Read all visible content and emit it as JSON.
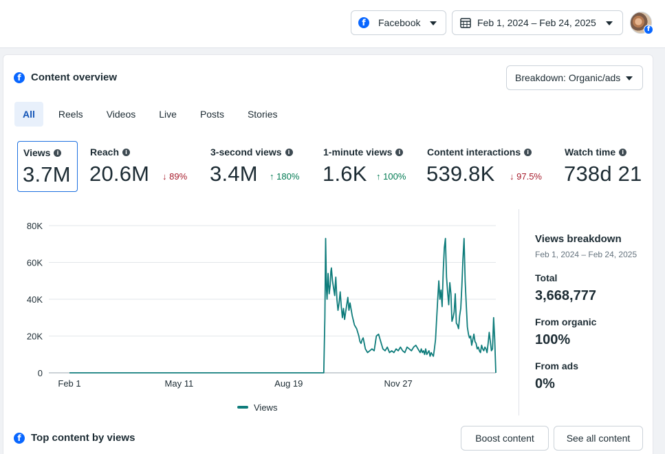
{
  "header": {
    "platform_label": "Facebook",
    "date_range": "Feb 1, 2024 – Feb 24, 2025"
  },
  "overview": {
    "title": "Content overview",
    "breakdown_label": "Breakdown: Organic/ads",
    "tabs": [
      "All",
      "Reels",
      "Videos",
      "Live",
      "Posts",
      "Stories"
    ],
    "active_tab": "All"
  },
  "metrics": [
    {
      "label": "Views",
      "value": "3.7M",
      "change": "",
      "direction": ""
    },
    {
      "label": "Reach",
      "value": "20.6M",
      "change": "89%",
      "direction": "down"
    },
    {
      "label": "3-second views",
      "value": "3.4M",
      "change": "180%",
      "direction": "up"
    },
    {
      "label": "1-minute views",
      "value": "1.6K",
      "change": "100%",
      "direction": "up"
    },
    {
      "label": "Content interactions",
      "value": "539.8K",
      "change": "97.5%",
      "direction": "down"
    },
    {
      "label": "Watch time",
      "value": "738d 21",
      "change": "",
      "direction": ""
    }
  ],
  "chart_data": {
    "type": "line",
    "x_tick_labels": [
      "Feb 1",
      "May 11",
      "Aug 19",
      "Nov 27"
    ],
    "y_tick_labels": [
      "0",
      "20K",
      "40K",
      "60K",
      "80K"
    ],
    "ylim": [
      0,
      80000
    ],
    "x_range_days": [
      0,
      389
    ],
    "x_tick_days": [
      0,
      100,
      200,
      300
    ],
    "grid": true,
    "legend_position": "bottom",
    "color": "#0e7c7b",
    "series": [
      {
        "name": "Views",
        "x": [
          0,
          232,
          233,
          233.7,
          234.5,
          235,
          236,
          237,
          238,
          238.5,
          239,
          240,
          241,
          242,
          242.5,
          243,
          244,
          245,
          246,
          247,
          248,
          249,
          250,
          251,
          252,
          253,
          254,
          255,
          256,
          258,
          260,
          262,
          264,
          265,
          266,
          267,
          268,
          269,
          270,
          272,
          274,
          276,
          278,
          280,
          282,
          284,
          286,
          288,
          290,
          292,
          294,
          296,
          298,
          300,
          302,
          304,
          306,
          308,
          310,
          312,
          314,
          316,
          318,
          320,
          321,
          322,
          323,
          324,
          325,
          326,
          327,
          328,
          329,
          330,
          331,
          332,
          333,
          334,
          335,
          336,
          337,
          338,
          339,
          340,
          341,
          342,
          343,
          344,
          345,
          346,
          347,
          348,
          349,
          350,
          351,
          352,
          353,
          354,
          355,
          356,
          357,
          358,
          359,
          360,
          361,
          362,
          363,
          364,
          365,
          366,
          367,
          368,
          369,
          370,
          371,
          372,
          373,
          374,
          375,
          376,
          377,
          378,
          379,
          380,
          381,
          382,
          383,
          384,
          385,
          386,
          387,
          388,
          389
        ],
        "y": [
          0,
          0,
          30000,
          73000,
          45000,
          40000,
          54000,
          43000,
          48000,
          55000,
          57000,
          50000,
          46000,
          42000,
          48000,
          52000,
          40000,
          34000,
          38000,
          44000,
          36000,
          30000,
          35000,
          29000,
          33000,
          37000,
          41000,
          34000,
          38000,
          31000,
          26000,
          24000,
          20000,
          17000,
          16000,
          18000,
          19000,
          16000,
          13000,
          11000,
          12000,
          13000,
          12000,
          20000,
          21000,
          17000,
          13000,
          12000,
          14000,
          11000,
          12000,
          11000,
          13000,
          12000,
          14000,
          12000,
          11000,
          14000,
          13000,
          12000,
          14000,
          15000,
          13000,
          11000,
          13000,
          11000,
          12000,
          10000,
          13000,
          10000,
          11000,
          12000,
          9000,
          11000,
          10000,
          9000,
          13000,
          18000,
          29000,
          40000,
          50000,
          40000,
          45000,
          36000,
          55000,
          68000,
          73000,
          52000,
          44000,
          37000,
          49000,
          43000,
          28000,
          30000,
          33000,
          43000,
          27000,
          26000,
          24000,
          31000,
          35000,
          47000,
          62000,
          73000,
          50000,
          37000,
          25000,
          21000,
          19000,
          20000,
          15000,
          18000,
          21000,
          17000,
          16000,
          13000,
          14000,
          12000,
          11000,
          15000,
          13000,
          12000,
          14000,
          13000,
          11000,
          16000,
          22000,
          17000,
          12000,
          13000,
          30000,
          18000,
          0
        ]
      }
    ]
  },
  "views_breakdown": {
    "title": "Views breakdown",
    "date_range": "Feb 1, 2024 – Feb 24, 2025",
    "total_label": "Total",
    "total_value": "3,668,777",
    "organic_label": "From organic",
    "organic_value": "100%",
    "ads_label": "From ads",
    "ads_value": "0%"
  },
  "top_content": {
    "title": "Top content by views",
    "boost_label": "Boost content",
    "see_all_label": "See all content"
  },
  "icons": {
    "facebook": "facebook-icon",
    "calendar": "calendar-icon",
    "info": "info-icon",
    "down_arrow": "arrow-down-icon",
    "up_arrow": "arrow-up-icon"
  },
  "colors": {
    "brand_blue": "#0866ff",
    "line": "#0e7c7b",
    "up": "#007a52",
    "down": "#a61b2b"
  }
}
